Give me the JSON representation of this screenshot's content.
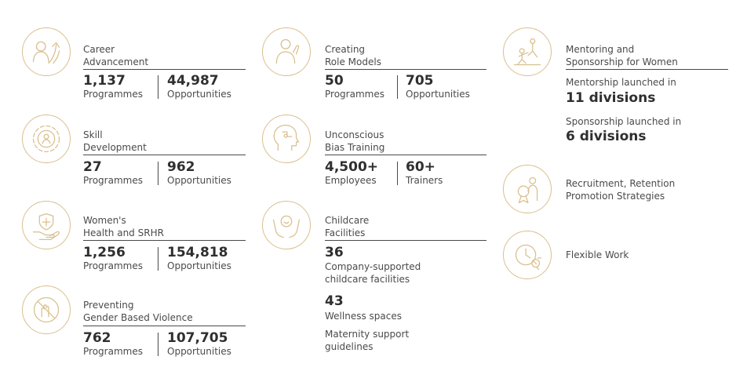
{
  "accent_color": "#d9bf8e",
  "column1": {
    "career": {
      "title_line1": "Career",
      "title_line2": "Advancement",
      "stat1": {
        "value": "1,137",
        "label": "Programmes"
      },
      "stat2": {
        "value": "44,987",
        "label": "Opportunities"
      }
    },
    "skill": {
      "title_line1": "Skill",
      "title_line2": "Development",
      "stat1": {
        "value": "27",
        "label": "Programmes"
      },
      "stat2": {
        "value": "962",
        "label": "Opportunities"
      }
    },
    "health": {
      "title_line1": "Women's",
      "title_line2": "Health and SRHR",
      "stat1": {
        "value": "1,256",
        "label": "Programmes"
      },
      "stat2": {
        "value": "154,818",
        "label": "Opportunities"
      }
    },
    "violence": {
      "title_line1": "Preventing",
      "title_line2": "Gender Based Violence",
      "stat1": {
        "value": "762",
        "label": "Programmes"
      },
      "stat2": {
        "value": "107,705",
        "label": "Opportunities"
      }
    }
  },
  "column2": {
    "role_models": {
      "title_line1": "Creating",
      "title_line2": "Role Models",
      "stat1": {
        "value": "50",
        "label": "Programmes"
      },
      "stat2": {
        "value": "705",
        "label": "Opportunities"
      }
    },
    "bias": {
      "title_line1": "Unconscious",
      "title_line2": "Bias Training",
      "stat1": {
        "value": "4,500+",
        "label": "Employees"
      },
      "stat2": {
        "value": "60+",
        "label": "Trainers"
      }
    },
    "childcare": {
      "title_line1": "Childcare",
      "title_line2": "Facilities",
      "value1": "36",
      "desc1_line1": "Company-supported",
      "desc1_line2": "childcare facilities",
      "value2": "43",
      "desc2": "Wellness spaces",
      "desc3_line1": "Maternity support",
      "desc3_line2": "guidelines"
    }
  },
  "column3": {
    "mentoring": {
      "title_line1": "Mentoring and",
      "title_line2": "Sponsorship for Women",
      "mentor_label": "Mentorship launched in",
      "mentor_value": "11 divisions",
      "sponsor_label": "Sponsorship launched in",
      "sponsor_value": "6 divisions"
    },
    "recruitment": {
      "line1": "Recruitment, Retention",
      "line2": "Promotion Strategies"
    },
    "flexible": {
      "label": "Flexible Work"
    }
  },
  "icons": [
    "career-growth-icon",
    "role-model-icon",
    "mentoring-icon",
    "skill-gear-icon",
    "bias-brain-icon",
    "medal-ribbon-icon",
    "health-hand-icon",
    "childcare-hands-icon",
    "clock-gear-icon",
    "gbv-protest-icon"
  ]
}
